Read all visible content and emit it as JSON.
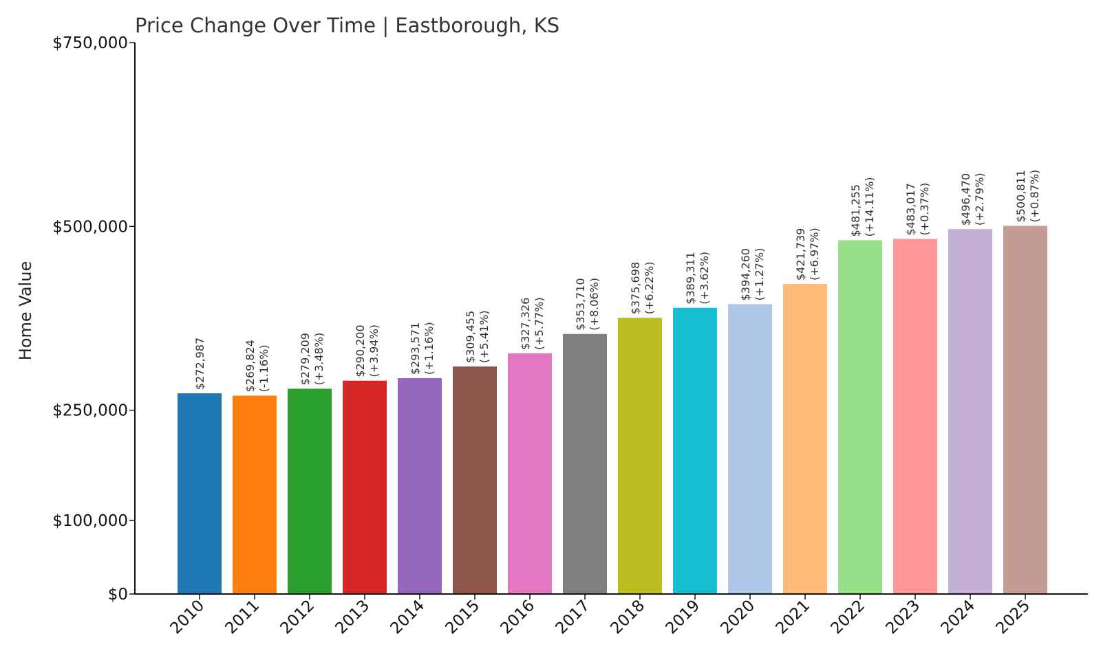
{
  "chart_data": {
    "type": "bar",
    "title": "Price Change Over Time | Eastborough, KS",
    "xlabel": "",
    "ylabel": "Home Value",
    "ylim": [
      0,
      750000
    ],
    "yticks": [
      {
        "value": 0,
        "label": "$0"
      },
      {
        "value": 100000,
        "label": "$100,000"
      },
      {
        "value": 250000,
        "label": "$250,000"
      },
      {
        "value": 500000,
        "label": "$500,000"
      },
      {
        "value": 750000,
        "label": "$750,000"
      }
    ],
    "grid": false,
    "categories": [
      "2010",
      "2011",
      "2012",
      "2013",
      "2014",
      "2015",
      "2016",
      "2017",
      "2018",
      "2019",
      "2020",
      "2021",
      "2022",
      "2023",
      "2024",
      "2025"
    ],
    "values": [
      272987,
      269824,
      279209,
      290200,
      293571,
      309455,
      327326,
      353710,
      375698,
      389311,
      394260,
      421739,
      481255,
      483017,
      496470,
      500811
    ],
    "value_labels": [
      "$272,987",
      "$269,824",
      "$279,209",
      "$290,200",
      "$293,571",
      "$309,455",
      "$327,326",
      "$353,710",
      "$375,698",
      "$389,311",
      "$394,260",
      "$421,739",
      "$481,255",
      "$483,017",
      "$496,470",
      "$500,811"
    ],
    "change_labels": [
      "",
      "(-1.16%)",
      "(+3.48%)",
      "(+3.94%)",
      "(+1.16%)",
      "(+5.41%)",
      "(+5.77%)",
      "(+8.06%)",
      "(+6.22%)",
      "(+3.62%)",
      "(+1.27%)",
      "(+6.97%)",
      "(+14.11%)",
      "(+0.37%)",
      "(+2.79%)",
      "(+0.87%)"
    ],
    "colors": [
      "#1f77b4",
      "#ff7f0e",
      "#2ca02c",
      "#d62728",
      "#9467bd",
      "#8c564b",
      "#e377c2",
      "#7f7f7f",
      "#bcbd22",
      "#17becf",
      "#aec7e8",
      "#ffbb78",
      "#98df8a",
      "#ff9896",
      "#c5b0d5",
      "#c49c94"
    ]
  }
}
